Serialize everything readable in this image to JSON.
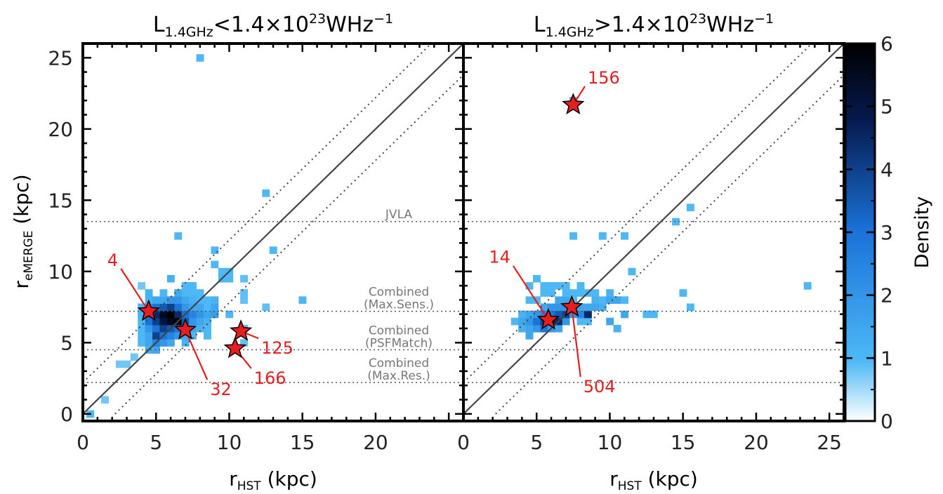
{
  "chart_data": {
    "type": "heatmap",
    "panels": [
      {
        "title": "L1.4GHz<1.4×10^23 W Hz^-1",
        "title_parts": {
          "L": "L",
          "sub": "1.4GHz",
          "rel": "<1.4×10",
          "exp": "23",
          "unit": "WHz",
          "unit_exp": "−1"
        },
        "xlabel": {
          "r": "r",
          "sub": "HST",
          "unit": " (kpc)"
        },
        "ylabel": {
          "r": "r",
          "sub": "eMERGE",
          "unit": " (kpc)"
        },
        "xlim": [
          0,
          26
        ],
        "ylim": [
          -0.5,
          26
        ],
        "xticks": [
          0,
          5,
          10,
          15,
          20
        ],
        "yticks": [
          0,
          5,
          10,
          15,
          20,
          25
        ],
        "cells": [
          [
            0.5,
            0,
            1.0
          ],
          [
            1.5,
            1,
            0.8
          ],
          [
            2.5,
            3.5,
            0.8
          ],
          [
            3.0,
            3.5,
            0.8
          ],
          [
            3.5,
            4.0,
            0.8
          ],
          [
            4.0,
            9,
            0.8
          ],
          [
            4.5,
            8.5,
            1.2
          ],
          [
            4.0,
            5.0,
            1.0
          ],
          [
            4.0,
            5.5,
            1.0
          ],
          [
            4.0,
            6.0,
            1.0
          ],
          [
            4.0,
            6.5,
            1.0
          ],
          [
            4.0,
            7.0,
            1.2
          ],
          [
            4.0,
            7.5,
            1.0
          ],
          [
            4.5,
            4.5,
            1.3
          ],
          [
            4.5,
            5.0,
            1.5
          ],
          [
            4.5,
            5.5,
            1.5
          ],
          [
            4.5,
            6.0,
            2.0
          ],
          [
            4.5,
            6.5,
            3.0
          ],
          [
            4.5,
            7.0,
            3.0
          ],
          [
            4.5,
            7.5,
            2.0
          ],
          [
            4.5,
            8.0,
            1.2
          ],
          [
            5.0,
            4.5,
            1.5
          ],
          [
            5.0,
            5.0,
            2.5
          ],
          [
            5.0,
            5.5,
            4.0
          ],
          [
            5.0,
            6.0,
            3.0
          ],
          [
            5.0,
            6.5,
            4.0
          ],
          [
            5.0,
            7.0,
            4.5
          ],
          [
            5.0,
            7.5,
            3.0
          ],
          [
            5.0,
            8.0,
            1.5
          ],
          [
            5.5,
            5.0,
            2.0
          ],
          [
            5.5,
            5.5,
            3.0
          ],
          [
            5.5,
            6.0,
            4.0
          ],
          [
            5.5,
            6.5,
            5.0
          ],
          [
            5.5,
            7.0,
            5.5
          ],
          [
            5.5,
            7.5,
            3.5
          ],
          [
            5.5,
            8.0,
            1.5
          ],
          [
            5.5,
            8.5,
            1.0
          ],
          [
            6.0,
            5.0,
            1.5
          ],
          [
            6.0,
            5.5,
            2.5
          ],
          [
            6.0,
            6.0,
            3.5
          ],
          [
            6.0,
            6.5,
            5.5
          ],
          [
            6.0,
            7.0,
            6.0
          ],
          [
            6.0,
            7.5,
            4.0
          ],
          [
            6.0,
            8.0,
            2.0
          ],
          [
            6.0,
            9.5,
            1.2
          ],
          [
            6.5,
            5.5,
            2.0
          ],
          [
            6.5,
            6.0,
            3.0
          ],
          [
            6.5,
            6.5,
            6.0
          ],
          [
            6.5,
            7.0,
            4.5
          ],
          [
            6.5,
            7.5,
            3.0
          ],
          [
            6.5,
            8.0,
            2.0
          ],
          [
            6.5,
            8.5,
            1.5
          ],
          [
            6.5,
            12.5,
            1.0
          ],
          [
            7.0,
            5.0,
            1.2
          ],
          [
            7.0,
            5.5,
            1.5
          ],
          [
            7.0,
            6.0,
            2.0
          ],
          [
            7.0,
            6.5,
            3.5
          ],
          [
            7.0,
            7.0,
            3.0
          ],
          [
            7.0,
            7.5,
            2.0
          ],
          [
            7.0,
            8.0,
            1.5
          ],
          [
            7.0,
            8.5,
            1.0
          ],
          [
            7.0,
            9.0,
            1.0
          ],
          [
            7.5,
            5.5,
            1.0
          ],
          [
            7.5,
            6.0,
            1.5
          ],
          [
            7.5,
            6.5,
            2.0
          ],
          [
            7.5,
            7.0,
            2.5
          ],
          [
            7.5,
            7.5,
            1.5
          ],
          [
            7.5,
            8.0,
            1.2
          ],
          [
            7.5,
            8.5,
            1.0
          ],
          [
            7.5,
            9.0,
            1.0
          ],
          [
            8.0,
            6.0,
            1.2
          ],
          [
            8.0,
            6.5,
            1.5
          ],
          [
            8.0,
            7.0,
            2.0
          ],
          [
            8.0,
            7.5,
            1.5
          ],
          [
            8.0,
            8.0,
            1.0
          ],
          [
            8.0,
            8.5,
            1.0
          ],
          [
            8.0,
            25,
            1.0
          ],
          [
            8.5,
            5.5,
            1.0
          ],
          [
            8.5,
            6.0,
            1.0
          ],
          [
            8.5,
            6.5,
            1.2
          ],
          [
            8.5,
            7.0,
            1.5
          ],
          [
            8.5,
            7.5,
            1.0
          ],
          [
            8.5,
            8.0,
            1.0
          ],
          [
            9.0,
            7.0,
            1.8
          ],
          [
            9.0,
            7.5,
            1.5
          ],
          [
            9.0,
            8.0,
            1.2
          ],
          [
            9.0,
            10.5,
            1.0
          ],
          [
            9.0,
            11.5,
            1.0
          ],
          [
            9.5,
            9.5,
            1.0
          ],
          [
            9.5,
            10.0,
            1.0
          ],
          [
            10.0,
            7.0,
            1.0
          ],
          [
            10.0,
            9.5,
            1.0
          ],
          [
            10.0,
            10.0,
            1.0
          ],
          [
            11.0,
            5.0,
            0.9
          ],
          [
            11.0,
            6.0,
            0.9
          ],
          [
            11.0,
            8.0,
            0.9
          ],
          [
            11.0,
            8.5,
            0.9
          ],
          [
            11.0,
            9.5,
            0.9
          ],
          [
            12.5,
            7.5,
            0.9
          ],
          [
            12.5,
            15.5,
            1.0
          ],
          [
            13.0,
            11.5,
            1.0
          ],
          [
            15.0,
            8.0,
            1.0
          ]
        ],
        "stars": [
          {
            "label": "4",
            "x": 4.5,
            "y": 7.2,
            "lx": 2.6,
            "ly": 10.2
          },
          {
            "label": "32",
            "x": 7.0,
            "y": 5.9,
            "lx": 8.5,
            "ly": 2.4
          },
          {
            "label": "125",
            "x": 10.8,
            "y": 5.8,
            "lx": 12.0,
            "ly": 5.3
          },
          {
            "label": "166",
            "x": 10.4,
            "y": 4.6,
            "lx": 11.5,
            "ly": 3.2
          }
        ]
      },
      {
        "title": "L1.4GHz>1.4×10^23 W Hz^-1",
        "title_parts": {
          "L": "L",
          "sub": "1.4GHz",
          "rel": ">1.4×10",
          "exp": "23",
          "unit": "WHz",
          "unit_exp": "−1"
        },
        "xlabel": {
          "r": "r",
          "sub": "HST",
          "unit": " (kpc)"
        },
        "xlim": [
          0,
          26
        ],
        "ylim": [
          -0.5,
          26
        ],
        "xticks": [
          0,
          5,
          10,
          15,
          20,
          25
        ],
        "yticks": [
          0,
          5,
          10,
          15,
          20,
          25
        ],
        "cells": [
          [
            3.5,
            6.5,
            1.0
          ],
          [
            4.0,
            6.0,
            1.2
          ],
          [
            4.0,
            6.5,
            1.5
          ],
          [
            4.0,
            7.0,
            1.2
          ],
          [
            4.5,
            5.5,
            1.5
          ],
          [
            4.5,
            6.0,
            1.5
          ],
          [
            4.5,
            6.5,
            2.0
          ],
          [
            4.5,
            7.0,
            1.5
          ],
          [
            4.5,
            8.0,
            1.0
          ],
          [
            4.5,
            9.0,
            1.0
          ],
          [
            5.0,
            6.0,
            2.0
          ],
          [
            5.0,
            6.5,
            3.0
          ],
          [
            5.0,
            7.0,
            2.0
          ],
          [
            5.0,
            8.0,
            1.0
          ],
          [
            5.0,
            9.5,
            1.0
          ],
          [
            5.5,
            6.0,
            3.0
          ],
          [
            5.5,
            6.5,
            4.0
          ],
          [
            5.5,
            7.0,
            2.5
          ],
          [
            5.5,
            7.5,
            1.5
          ],
          [
            5.5,
            8.5,
            1.0
          ],
          [
            5.5,
            9.0,
            1.0
          ],
          [
            6.0,
            6.0,
            2.0
          ],
          [
            6.0,
            6.5,
            5.0
          ],
          [
            6.0,
            7.0,
            3.0
          ],
          [
            6.0,
            7.5,
            2.0
          ],
          [
            6.0,
            8.5,
            1.0
          ],
          [
            6.0,
            9.0,
            1.0
          ],
          [
            6.5,
            6.0,
            1.5
          ],
          [
            6.5,
            6.5,
            4.5
          ],
          [
            6.5,
            7.0,
            3.5
          ],
          [
            6.5,
            7.5,
            2.0
          ],
          [
            6.5,
            8.0,
            1.5
          ],
          [
            6.5,
            9.0,
            1.0
          ],
          [
            7.0,
            6.5,
            2.0
          ],
          [
            7.0,
            7.0,
            4.0
          ],
          [
            7.0,
            7.5,
            2.0
          ],
          [
            7.0,
            8.0,
            1.5
          ],
          [
            7.0,
            8.5,
            1.0
          ],
          [
            7.0,
            9.0,
            1.0
          ],
          [
            7.5,
            7.0,
            2.0
          ],
          [
            7.5,
            7.5,
            2.5
          ],
          [
            7.5,
            8.0,
            1.0
          ],
          [
            7.5,
            8.5,
            1.0
          ],
          [
            7.5,
            12.5,
            1.0
          ],
          [
            8.0,
            6.5,
            1.0
          ],
          [
            8.0,
            7.0,
            2.5
          ],
          [
            8.0,
            7.5,
            1.5
          ],
          [
            8.0,
            8.5,
            1.0
          ],
          [
            8.0,
            9.0,
            1.0
          ],
          [
            8.5,
            6.5,
            1.0
          ],
          [
            8.5,
            7.0,
            4.5
          ],
          [
            8.5,
            7.5,
            1.5
          ],
          [
            8.5,
            8.5,
            1.0
          ],
          [
            9.0,
            7.5,
            1.5
          ],
          [
            9.0,
            8.0,
            1.2
          ],
          [
            9.0,
            8.5,
            1.0
          ],
          [
            9.5,
            7.5,
            1.2
          ],
          [
            9.5,
            8.0,
            1.0
          ],
          [
            9.5,
            12.5,
            1.0
          ],
          [
            10.0,
            6.5,
            1.5
          ],
          [
            10.0,
            8.0,
            1.5
          ],
          [
            10.0,
            8.5,
            1.2
          ],
          [
            10.5,
            6.0,
            1.2
          ],
          [
            10.5,
            8.0,
            1.5
          ],
          [
            11.0,
            7.0,
            1.5
          ],
          [
            11.0,
            8.0,
            1.0
          ],
          [
            11.0,
            12.5,
            1.0
          ],
          [
            11.5,
            10.0,
            1.0
          ],
          [
            12.5,
            7.0,
            1.0
          ],
          [
            13.0,
            7.0,
            1.0
          ],
          [
            14.5,
            13.5,
            1.0
          ],
          [
            15.0,
            8.5,
            1.0
          ],
          [
            15.5,
            14.5,
            1.0
          ],
          [
            15.5,
            7.5,
            1.0
          ],
          [
            23.5,
            9.0,
            1.0
          ],
          [
            7.5,
            22.0,
            1.0
          ]
        ],
        "stars": [
          {
            "label": "14",
            "x": 5.8,
            "y": 6.6,
            "lx": 3.4,
            "ly": 10.4
          },
          {
            "label": "504",
            "x": 7.4,
            "y": 7.5,
            "lx": 8.0,
            "ly": 2.6
          },
          {
            "label": "156",
            "x": 7.5,
            "y": 21.7,
            "lx": 8.3,
            "ly": 23.0
          }
        ]
      }
    ],
    "reference_lines": [
      {
        "label": "JVLA",
        "y": 13.5
      },
      {
        "label": "Combined",
        "label2": "(Max.Sens.)",
        "y": 7.2
      },
      {
        "label": "Combined",
        "label2": "(PSFMatch)",
        "y": 4.5
      },
      {
        "label": "Combined",
        "label2": "(Max.Res.)",
        "y": 2.2
      }
    ],
    "one_to_one_offset": 2.2,
    "colorbar": {
      "label": "Density",
      "range": [
        0,
        6
      ],
      "ticks": [
        0,
        1,
        2,
        3,
        4,
        5,
        6
      ]
    },
    "colors": {
      "low": "#ffffff",
      "light": "#4db8f5",
      "mid": "#1a73d9",
      "high": "#06194d",
      "max": "#000000",
      "star": "#e61e1e",
      "annotation": "#e61e1e",
      "ref_text": "#777777"
    }
  }
}
